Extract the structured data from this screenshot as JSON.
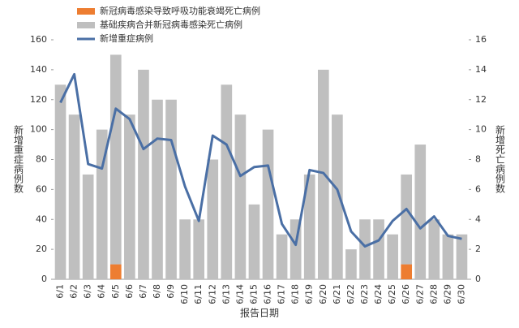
{
  "chart_data": {
    "type": "bar-line",
    "x_label": "报告日期",
    "y_label": "新增重症病例数",
    "y2_label": "新增死亡病例数",
    "categories": [
      "6/1",
      "6/2",
      "6/3",
      "6/4",
      "6/5",
      "6/6",
      "6/7",
      "6/8",
      "6/9",
      "6/10",
      "6/11",
      "6/12",
      "6/13",
      "6/14",
      "6/15",
      "6/16",
      "6/17",
      "6/18",
      "6/19",
      "6/20",
      "6/21",
      "6/22",
      "6/23",
      "6/24",
      "6/25",
      "6/26",
      "6/27",
      "6/28",
      "6/29",
      "6/30"
    ],
    "series": [
      {
        "name": "新冠病毒感染导致呼吸功能衰竭死亡病例",
        "color": "#ed7d31",
        "kind": "bar",
        "axis": "y2",
        "values": [
          0,
          0,
          0,
          0,
          1,
          0,
          0,
          0,
          0,
          0,
          0,
          0,
          0,
          0,
          0,
          0,
          0,
          0,
          0,
          0,
          0,
          0,
          0,
          0,
          0,
          1,
          0,
          0,
          0,
          0
        ]
      },
      {
        "name": "基础疾病合并新冠病毒感染死亡病例",
        "color": "#bfbfbf",
        "kind": "bar",
        "axis": "y2",
        "values": [
          13,
          11,
          7,
          10,
          14,
          11,
          14,
          12,
          12,
          4,
          4,
          8,
          13,
          11,
          5,
          10,
          3,
          4,
          7,
          14,
          11,
          2,
          4,
          4,
          3,
          6,
          9,
          4,
          3,
          3
        ]
      },
      {
        "name": "新增重症病例",
        "color": "#4a6fa5",
        "kind": "line",
        "axis": "y",
        "values": [
          118,
          137,
          77,
          74,
          114,
          107,
          87,
          94,
          93,
          62,
          39,
          96,
          90,
          69,
          75,
          76,
          37,
          23,
          73,
          71,
          60,
          32,
          22,
          26,
          39,
          47,
          34,
          42,
          29,
          27
        ]
      }
    ],
    "ylim": [
      0,
      160
    ],
    "yticks": [
      0,
      20,
      40,
      60,
      80,
      100,
      120,
      140,
      160
    ],
    "y2lim": [
      0,
      16
    ],
    "y2ticks": [
      0,
      2,
      4,
      6,
      8,
      10,
      12,
      14,
      16
    ],
    "stacked": true
  }
}
